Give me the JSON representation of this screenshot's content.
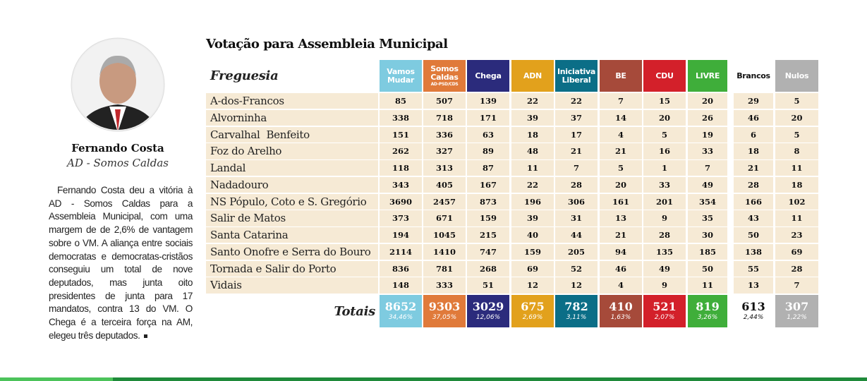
{
  "title": "Votação para Assembleia Municipal",
  "profile": {
    "name": "Fernando Costa",
    "party": "AD - Somos Caldas",
    "text": "Fernando Costa deu a vitória à AD - Somos Caldas para a Assembleia Municipal, com uma margem de de 2,6% de vantagem sobre o VM. A aliança entre sociais democratas e democratas-cristãos conseguiu um total de nove deputados, mas junta oito presidentes de junta para 17 mandatos, contra 13 do VM. O Chega é a terceira força na AM, elegeu três deputados."
  },
  "table": {
    "header": "Freguesia",
    "columns": [
      {
        "name": "Vamos Mudar",
        "color": "#7ecbe0"
      },
      {
        "name": "Somos Caldas",
        "sub": "AD-PSD/CDS",
        "color": "#e07a3a"
      },
      {
        "name": "Chega",
        "color": "#2b2b7c"
      },
      {
        "name": "ADN",
        "color": "#e2a11c"
      },
      {
        "name": "Iniciativa Liberal",
        "color": "#0b6e87"
      },
      {
        "name": "BE",
        "color": "#a64a3a"
      },
      {
        "name": "CDU",
        "color": "#d3202a"
      },
      {
        "name": "LIVRE",
        "color": "#3fae3a"
      },
      {
        "name": "Brancos",
        "color": "#ffffff"
      },
      {
        "name": "Nulos",
        "color": "#b1b1b1"
      }
    ],
    "rows": [
      {
        "name": "A-dos-Francos",
        "values": [
          85,
          507,
          139,
          22,
          22,
          7,
          15,
          20,
          29,
          5
        ]
      },
      {
        "name": "Alvorninha",
        "values": [
          338,
          718,
          171,
          39,
          37,
          14,
          20,
          26,
          46,
          20
        ]
      },
      {
        "name": "Carvalhal  Benfeito",
        "values": [
          151,
          336,
          63,
          18,
          17,
          4,
          5,
          19,
          6,
          5
        ]
      },
      {
        "name": "Foz do Arelho",
        "values": [
          262,
          327,
          89,
          48,
          21,
          21,
          16,
          33,
          18,
          8
        ]
      },
      {
        "name": "Landal",
        "values": [
          118,
          313,
          87,
          11,
          7,
          5,
          1,
          7,
          21,
          11
        ]
      },
      {
        "name": "Nadadouro",
        "values": [
          343,
          405,
          167,
          22,
          28,
          20,
          33,
          49,
          28,
          18
        ]
      },
      {
        "name": "NS Pópulo, Coto e S. Gregório",
        "values": [
          3690,
          2457,
          873,
          196,
          306,
          161,
          201,
          354,
          166,
          102
        ]
      },
      {
        "name": "Salir de Matos",
        "values": [
          373,
          671,
          159,
          39,
          31,
          13,
          9,
          35,
          43,
          11
        ]
      },
      {
        "name": "Santa Catarina",
        "values": [
          194,
          1045,
          215,
          40,
          44,
          21,
          28,
          30,
          50,
          23
        ]
      },
      {
        "name": "Santo Onofre e Serra do Bouro",
        "values": [
          2114,
          1410,
          747,
          159,
          205,
          94,
          135,
          185,
          138,
          69
        ]
      },
      {
        "name": "Tornada e Salir do Porto",
        "values": [
          836,
          781,
          268,
          69,
          52,
          46,
          49,
          50,
          55,
          28
        ]
      },
      {
        "name": "Vidais",
        "values": [
          148,
          333,
          51,
          12,
          12,
          4,
          9,
          11,
          13,
          7
        ]
      }
    ],
    "totals": {
      "label": "Totais",
      "values": [
        8652,
        9303,
        3029,
        675,
        782,
        410,
        521,
        819,
        613,
        307
      ],
      "percents": [
        "34,46%",
        "37,05%",
        "12,06%",
        "2,69%",
        "3,11%",
        "1,63%",
        "2,07%",
        "3,26%",
        "2,44%",
        "1,22%"
      ]
    }
  }
}
